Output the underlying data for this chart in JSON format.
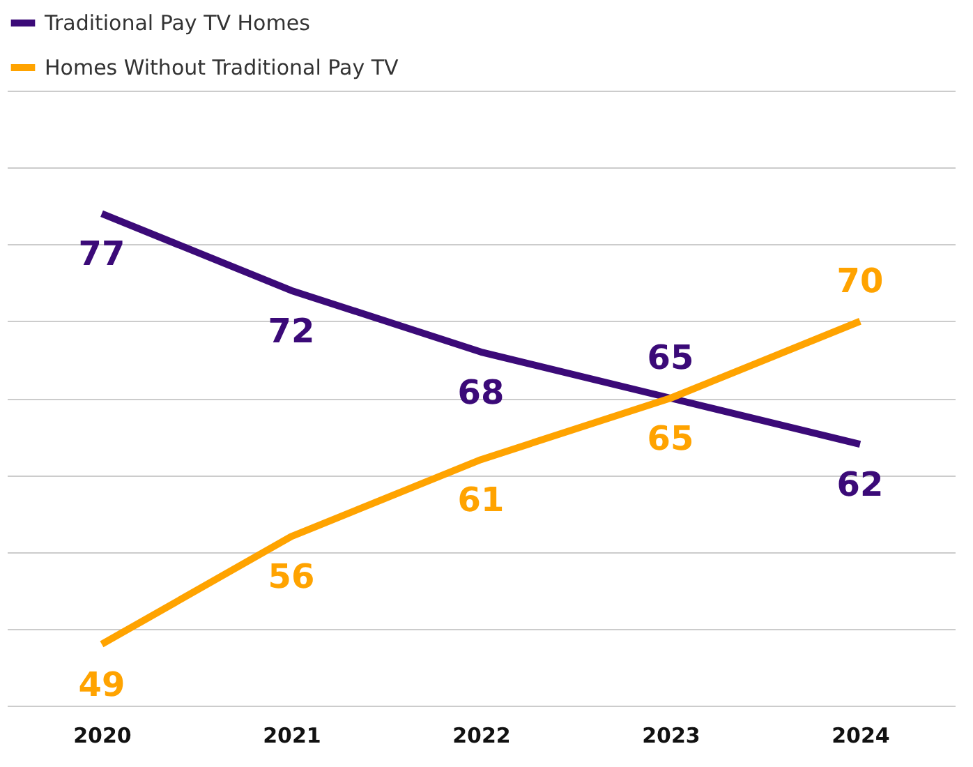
{
  "chart_data": {
    "type": "line",
    "categories": [
      "2020",
      "2021",
      "2022",
      "2023",
      "2024"
    ],
    "series": [
      {
        "name": "Traditional Pay TV Homes",
        "color": "#3b0a78",
        "values": [
          77,
          72,
          68,
          65,
          62
        ]
      },
      {
        "name": "Homes Without Traditional Pay TV",
        "color": "#ffa300",
        "values": [
          49,
          56,
          61,
          65,
          70
        ]
      }
    ],
    "grid": "y",
    "tick_labels": "x",
    "data_labels": true,
    "legend": "top left",
    "marker": "none",
    "line_style": "solid"
  }
}
